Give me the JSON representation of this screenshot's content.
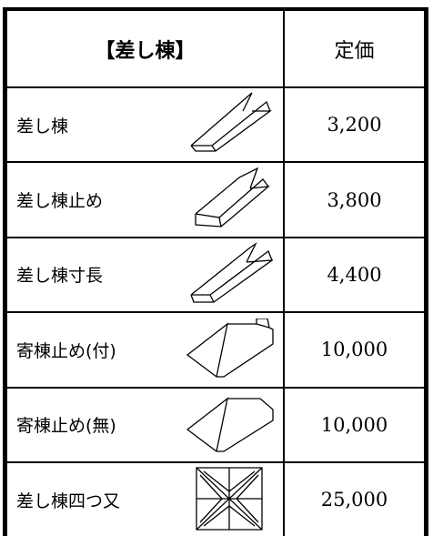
{
  "table": {
    "header": [
      "【差し棟】",
      "定価"
    ],
    "rows": [
      [
        "差し棟",
        "3,200"
      ],
      [
        "差し棟止め",
        "3,800"
      ],
      [
        "差し棟寸長",
        "4,400"
      ],
      [
        "寄棟止め(付)",
        "10,000"
      ],
      [
        "寄棟止め(無)",
        "10,000"
      ],
      [
        "差し棟四つ又",
        "25,000"
      ]
    ]
  }
}
